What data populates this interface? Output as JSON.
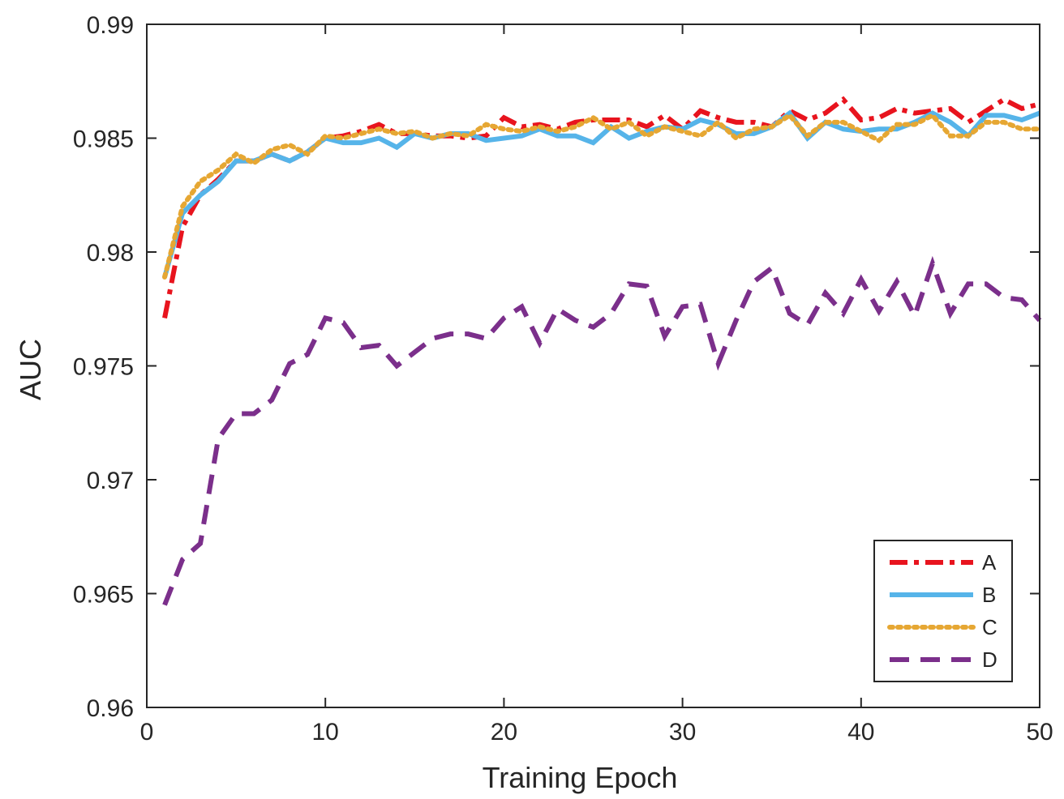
{
  "chart_data": {
    "type": "line",
    "title": "",
    "xlabel": "Training Epoch",
    "ylabel": "AUC",
    "xlim": [
      0,
      50
    ],
    "ylim": [
      0.96,
      0.99
    ],
    "xticks": [
      0,
      10,
      20,
      30,
      40,
      50
    ],
    "xtick_labels": [
      "0",
      "10",
      "20",
      "30",
      "40",
      "50"
    ],
    "yticks": [
      0.96,
      0.965,
      0.97,
      0.975,
      0.98,
      0.985,
      0.99
    ],
    "ytick_labels": [
      "0.96",
      "0.965",
      "0.97",
      "0.975",
      "0.98",
      "0.985",
      "0.99"
    ],
    "grid": false,
    "legend_position": "bottom-right",
    "x": [
      1,
      2,
      3,
      4,
      5,
      6,
      7,
      8,
      9,
      10,
      11,
      12,
      13,
      14,
      15,
      16,
      17,
      18,
      19,
      20,
      21,
      22,
      23,
      24,
      25,
      26,
      27,
      28,
      29,
      30,
      31,
      32,
      33,
      34,
      35,
      36,
      37,
      38,
      39,
      40,
      41,
      42,
      43,
      44,
      45,
      46,
      47,
      48,
      49,
      50
    ],
    "series": [
      {
        "name": "A",
        "color": "#e8141e",
        "dash": "dashdot",
        "values": [
          0.9771,
          0.9811,
          0.9825,
          0.9832,
          0.984,
          0.984,
          0.9843,
          0.984,
          0.9844,
          0.985,
          0.9851,
          0.9853,
          0.9856,
          0.9852,
          0.9852,
          0.9851,
          0.9851,
          0.985,
          0.9851,
          0.9859,
          0.9855,
          0.9856,
          0.9854,
          0.9857,
          0.9858,
          0.9858,
          0.9858,
          0.9855,
          0.986,
          0.9854,
          0.9862,
          0.9859,
          0.9857,
          0.9857,
          0.9855,
          0.9862,
          0.9858,
          0.9861,
          0.9867,
          0.9858,
          0.9859,
          0.9863,
          0.9861,
          0.9862,
          0.9863,
          0.9857,
          0.9862,
          0.9867,
          0.9863,
          0.9865
        ]
      },
      {
        "name": "B",
        "color": "#56b4e9",
        "dash": "solid",
        "values": [
          0.9789,
          0.9817,
          0.9825,
          0.9831,
          0.984,
          0.984,
          0.9843,
          0.984,
          0.9844,
          0.985,
          0.9848,
          0.9848,
          0.985,
          0.9846,
          0.9852,
          0.985,
          0.9852,
          0.9852,
          0.9849,
          0.985,
          0.9851,
          0.9854,
          0.9851,
          0.9851,
          0.9848,
          0.9855,
          0.985,
          0.9853,
          0.9855,
          0.9854,
          0.9858,
          0.9856,
          0.9852,
          0.9852,
          0.9855,
          0.9861,
          0.985,
          0.9857,
          0.9854,
          0.9853,
          0.9854,
          0.9854,
          0.9857,
          0.9861,
          0.9857,
          0.9851,
          0.986,
          0.986,
          0.9858,
          0.9861
        ]
      },
      {
        "name": "C",
        "color": "#e6a733",
        "dash": "dotted",
        "values": [
          0.9789,
          0.982,
          0.9831,
          0.9836,
          0.9843,
          0.9839,
          0.9845,
          0.9847,
          0.9843,
          0.9851,
          0.985,
          0.9852,
          0.9854,
          0.9852,
          0.9853,
          0.985,
          0.9852,
          0.9851,
          0.9856,
          0.9854,
          0.9853,
          0.9855,
          0.9853,
          0.9855,
          0.9859,
          0.9854,
          0.9857,
          0.9851,
          0.9855,
          0.9853,
          0.9851,
          0.9857,
          0.985,
          0.9854,
          0.9855,
          0.986,
          0.9851,
          0.9857,
          0.9857,
          0.9853,
          0.9849,
          0.9856,
          0.9856,
          0.986,
          0.9851,
          0.9851,
          0.9857,
          0.9857,
          0.9854,
          0.9854
        ]
      },
      {
        "name": "D",
        "color": "#7b2f8b",
        "dash": "dashed",
        "values": [
          0.9645,
          0.9665,
          0.9672,
          0.9718,
          0.9729,
          0.9729,
          0.9735,
          0.9751,
          0.9755,
          0.9771,
          0.9769,
          0.9758,
          0.9759,
          0.975,
          0.9756,
          0.9762,
          0.9764,
          0.9764,
          0.9762,
          0.9771,
          0.9776,
          0.976,
          0.9775,
          0.977,
          0.9767,
          0.9773,
          0.9786,
          0.9785,
          0.9763,
          0.9776,
          0.9777,
          0.9751,
          0.977,
          0.9787,
          0.9793,
          0.9773,
          0.9768,
          0.9782,
          0.9773,
          0.9788,
          0.9774,
          0.9787,
          0.9772,
          0.9795,
          0.9773,
          0.9786,
          0.9786,
          0.978,
          0.9779,
          0.977
        ]
      }
    ]
  }
}
